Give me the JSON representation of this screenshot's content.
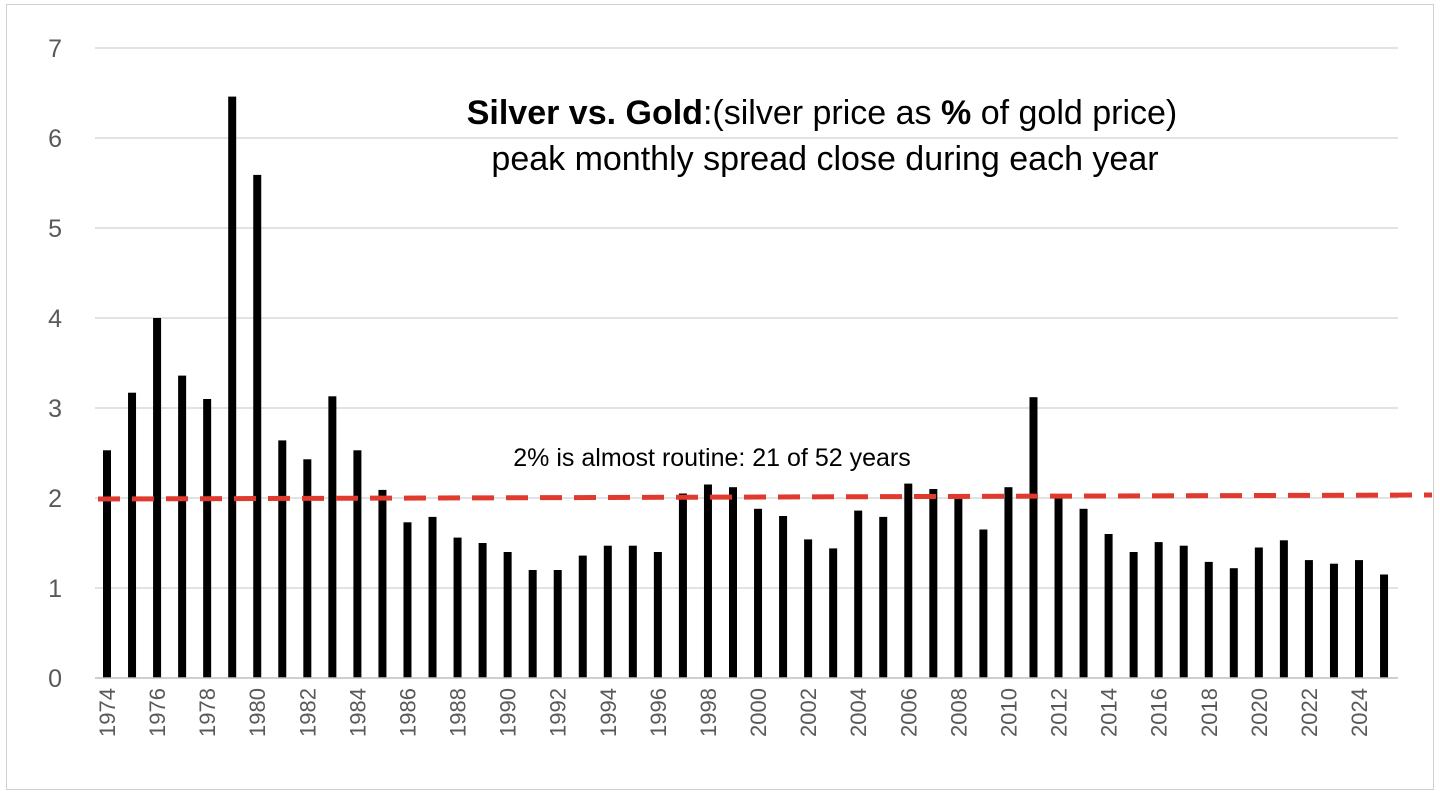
{
  "chart_data": {
    "type": "bar",
    "title": "Silver vs. Gold",
    "title_rest_1": ":(silver price as ",
    "title_pct": "%",
    "title_rest_2": " of gold price)",
    "subtitle": "peak monthly spread close during each year",
    "xlabel": "",
    "ylabel": "",
    "ylim": [
      0,
      7
    ],
    "yticks": [
      0,
      1,
      2,
      3,
      4,
      5,
      6,
      7
    ],
    "categories": [
      "1974",
      "1975",
      "1976",
      "1977",
      "1978",
      "1979",
      "1980",
      "1981",
      "1982",
      "1983",
      "1984",
      "1985",
      "1986",
      "1987",
      "1988",
      "1989",
      "1990",
      "1991",
      "1992",
      "1993",
      "1994",
      "1995",
      "1996",
      "1997",
      "1998",
      "1999",
      "2000",
      "2001",
      "2002",
      "2003",
      "2004",
      "2005",
      "2006",
      "2007",
      "2008",
      "2009",
      "2010",
      "2011",
      "2012",
      "2013",
      "2014",
      "2015",
      "2016",
      "2017",
      "2018",
      "2019",
      "2020",
      "2021",
      "2022",
      "2023",
      "2024",
      "2025"
    ],
    "tick_labels": [
      "1974",
      "1976",
      "1978",
      "1980",
      "1982",
      "1984",
      "1986",
      "1988",
      "1990",
      "1992",
      "1994",
      "1996",
      "1998",
      "2000",
      "2002",
      "2004",
      "2006",
      "2008",
      "2010",
      "2012",
      "2014",
      "2016",
      "2018",
      "2020",
      "2022",
      "2024"
    ],
    "values": [
      2.53,
      3.17,
      4.0,
      3.36,
      3.1,
      6.46,
      5.59,
      2.64,
      2.43,
      3.13,
      2.53,
      2.09,
      1.73,
      1.79,
      1.56,
      1.5,
      1.4,
      1.2,
      1.2,
      1.36,
      1.47,
      1.47,
      1.4,
      2.05,
      2.15,
      2.12,
      1.88,
      1.8,
      1.54,
      1.44,
      1.86,
      1.79,
      2.16,
      2.1,
      2.01,
      1.65,
      2.12,
      3.12,
      2.03,
      1.88,
      1.6,
      1.4,
      1.51,
      1.47,
      1.29,
      1.22,
      1.45,
      1.53,
      1.31,
      1.27,
      1.31,
      1.15
    ],
    "bar_color": "#000000",
    "grid": true,
    "legend": "none",
    "reference_line": {
      "value": 2.0,
      "color": "#e03a2f",
      "style": "dashed",
      "label": "2% is almost routine: 21 of 52 years"
    }
  }
}
